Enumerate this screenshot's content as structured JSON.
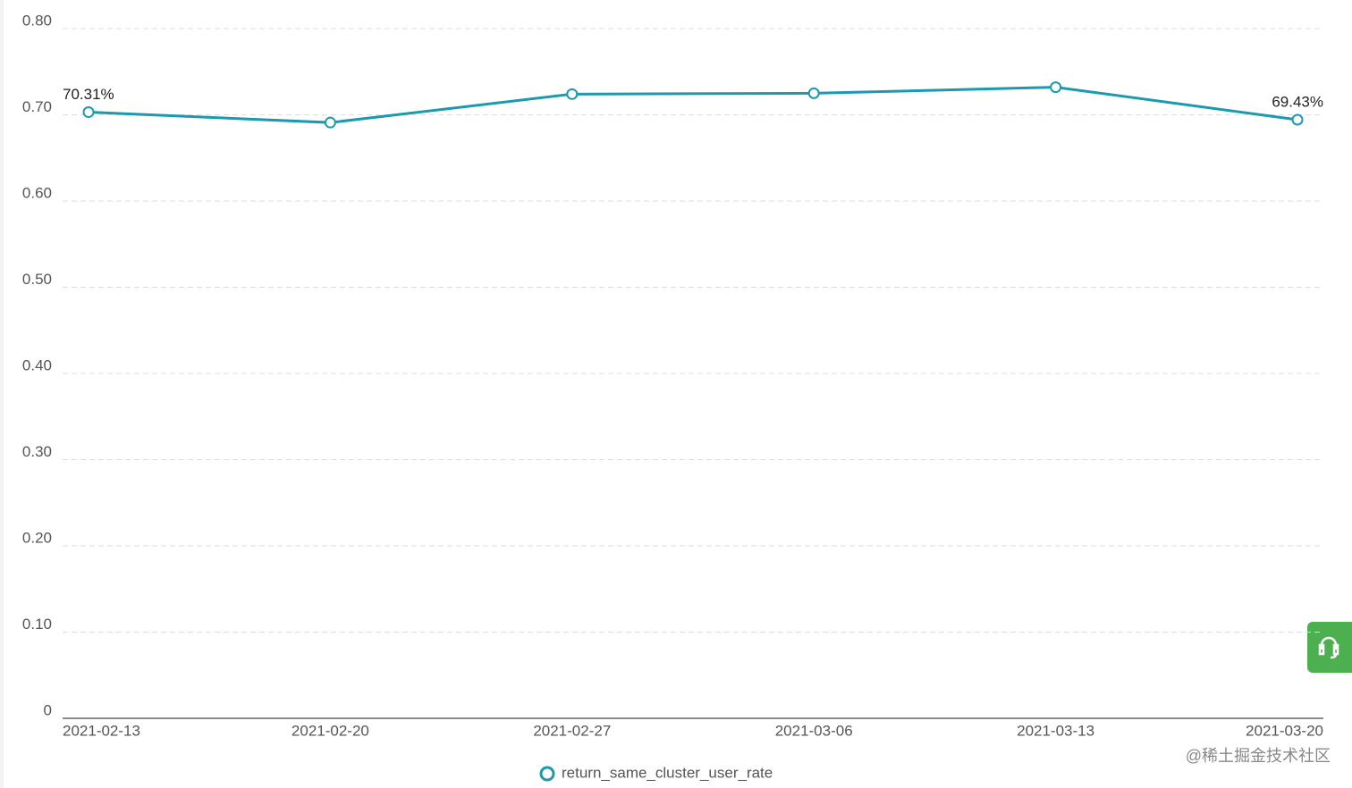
{
  "chart_data": {
    "type": "line",
    "categories": [
      "2021-02-13",
      "2021-02-20",
      "2021-02-27",
      "2021-03-06",
      "2021-03-13",
      "2021-03-20"
    ],
    "series": [
      {
        "name": "return_same_cluster_user_rate",
        "color": "#1b9aaf",
        "values": [
          0.7031,
          0.691,
          0.724,
          0.725,
          0.732,
          0.6943
        ],
        "value_labels": [
          "70.31%",
          null,
          null,
          null,
          null,
          "69.43%"
        ]
      }
    ],
    "ylim": [
      0,
      0.8
    ],
    "yticks": [
      0,
      {
        "value": 0.1,
        "label": "0.10"
      },
      {
        "value": 0.2,
        "label": "0.20"
      },
      {
        "value": 0.3,
        "label": "0.30"
      },
      {
        "value": 0.4,
        "label": "0.40"
      },
      {
        "value": 0.5,
        "label": "0.50"
      },
      {
        "value": 0.6,
        "label": "0.60"
      },
      {
        "value": 0.7,
        "label": "0.70"
      },
      {
        "value": 0.8,
        "label": "0.80"
      }
    ],
    "grid": true,
    "legend": "bottom",
    "watermark": "@稀土掘金技术社区"
  }
}
